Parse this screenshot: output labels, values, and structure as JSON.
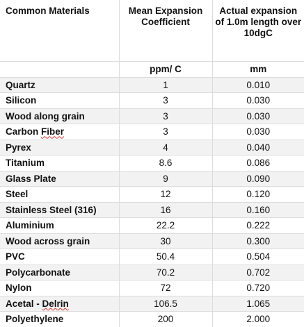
{
  "headers": {
    "col1": "Common Materials",
    "col2": "Mean Expansion Coefficient",
    "col3": "Actual expansion of 1.0m length over 10dgC"
  },
  "units": {
    "col1": "",
    "col2": "ppm/ C",
    "col3": "mm"
  },
  "rows": [
    {
      "material": "Quartz",
      "coefficient": "1",
      "expansion": "0.010"
    },
    {
      "material": "Silicon",
      "coefficient": "3",
      "expansion": "0.030"
    },
    {
      "material": "Wood along grain",
      "coefficient": "3",
      "expansion": "0.030"
    },
    {
      "material": "Carbon Fiber",
      "coefficient": "3",
      "expansion": "0.030"
    },
    {
      "material": "Pyrex",
      "coefficient": "4",
      "expansion": "0.040"
    },
    {
      "material": "Titanium",
      "coefficient": "8.6",
      "expansion": "0.086"
    },
    {
      "material": "Glass Plate",
      "coefficient": "9",
      "expansion": "0.090"
    },
    {
      "material": "Steel",
      "coefficient": "12",
      "expansion": "0.120"
    },
    {
      "material": "Stainless Steel (316)",
      "coefficient": "16",
      "expansion": "0.160"
    },
    {
      "material": "Aluminium",
      "coefficient": "22.2",
      "expansion": "0.222"
    },
    {
      "material": "Wood across grain",
      "coefficient": "30",
      "expansion": "0.300"
    },
    {
      "material": "PVC",
      "coefficient": "50.4",
      "expansion": "0.504"
    },
    {
      "material": "Polycarbonate",
      "coefficient": "70.2",
      "expansion": "0.702"
    },
    {
      "material": "Nylon",
      "coefficient": "72",
      "expansion": "0.720"
    },
    {
      "material": "Acetal - Delrin",
      "coefficient": "106.5",
      "expansion": "1.065"
    },
    {
      "material": "Polyethylene",
      "coefficient": "200",
      "expansion": "2.000"
    }
  ]
}
